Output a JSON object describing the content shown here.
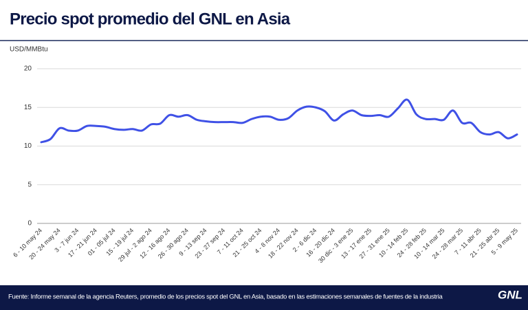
{
  "chart_data": {
    "type": "line",
    "title": "Precio spot promedio del GNL en Asia",
    "y_label": "USD/MMBtu",
    "source": "Fuente: Informe semanal de la agencia Reuters, promedio de los precios spot del GNL en Asia, basado en las estimaciones semanales de fuentes de la industria",
    "logo": "GNL",
    "categories": [
      "6 - 10 may 24",
      null,
      "20 - 24 may 24",
      null,
      "3 - 7 jun 24",
      null,
      "17 - 21 jun 24",
      null,
      "01 - 05 jul 24",
      null,
      "15 - 19 jul 24",
      null,
      "29 jul - 2 ago 24",
      null,
      "12 - 16 ago 24",
      null,
      "26 - 30 ago 24",
      null,
      "9 - 13 sep 24",
      null,
      "23 - 27 sep 24",
      null,
      "7 - 11 oct 24",
      null,
      "21 - 25 oct 24",
      null,
      "4 - 8 nov 24",
      null,
      "18 - 22 nov 24",
      null,
      "2 - 6 dic 24",
      null,
      "16 - 20 dic 24",
      null,
      "30 dic - 3 ene 25",
      null,
      "13 - 17 ene 25",
      null,
      "27 - 31 ene 25",
      null,
      "10 - 14 feb 25",
      null,
      "24 - 28 feb 25",
      null,
      "10 - 14 mar 25",
      null,
      "24 - 28 mar 25",
      null,
      "7 - 11 abr 25",
      null,
      "21 - 25 abr 25",
      null,
      "5 - 9 may 25"
    ],
    "series": [
      {
        "name": "Precio spot",
        "color": "#3f51e6",
        "values": [
          10.5,
          10.9,
          12.3,
          12.0,
          12.0,
          12.6,
          12.6,
          12.5,
          12.2,
          12.1,
          12.2,
          12.0,
          12.8,
          12.9,
          14.0,
          13.8,
          14.0,
          13.4,
          13.2,
          13.1,
          13.1,
          13.1,
          13.0,
          13.5,
          13.8,
          13.8,
          13.4,
          13.6,
          14.6,
          15.1,
          15.0,
          14.5,
          13.3,
          14.1,
          14.6,
          14.0,
          13.9,
          14.0,
          13.8,
          14.9,
          16.0,
          14.1,
          13.5,
          13.5,
          13.4,
          14.6,
          13.0,
          13.0,
          11.8,
          11.5,
          11.8,
          11.0,
          11.5
        ]
      }
    ],
    "ylim": [
      0,
      20
    ],
    "yticks": [
      0,
      5,
      10,
      15,
      20
    ],
    "grid": true
  }
}
